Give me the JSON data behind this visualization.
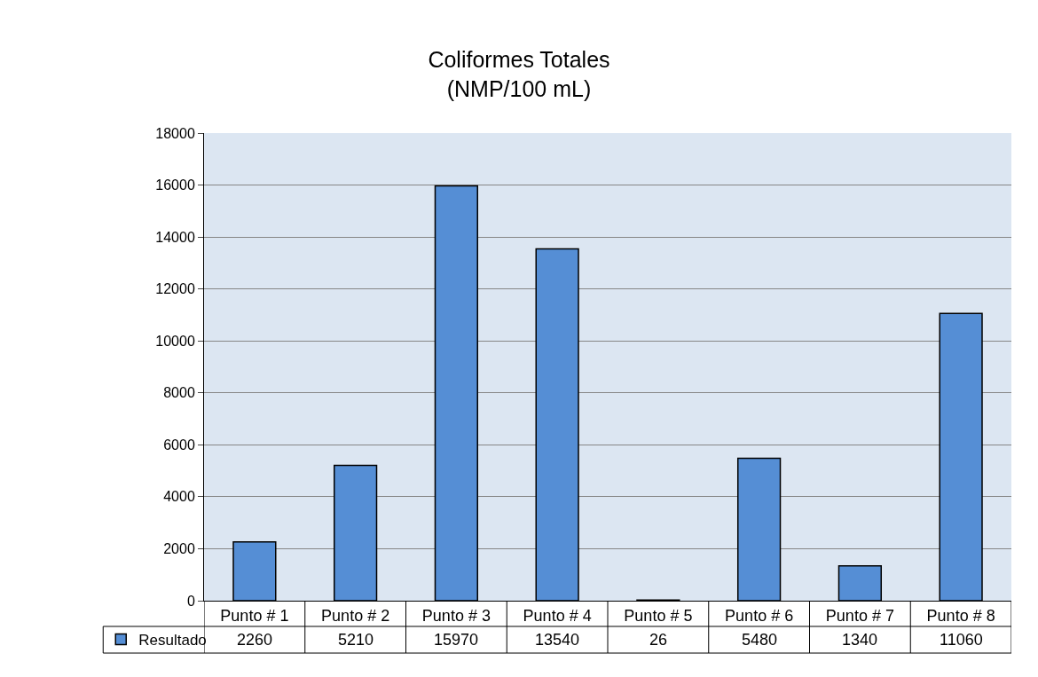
{
  "chart_data": {
    "type": "bar",
    "title": "Coliformes Totales\n(NMP/100 mL)",
    "categories": [
      "Punto # 1",
      "Punto # 2",
      "Punto # 3",
      "Punto # 4",
      "Punto # 5",
      "Punto # 6",
      "Punto # 7",
      "Punto # 8"
    ],
    "series": [
      {
        "name": "Resultado",
        "color": "#558ed5",
        "values": [
          2260,
          5210,
          15970,
          13540,
          26,
          5480,
          1340,
          11060
        ]
      }
    ],
    "ylim": [
      0,
      18000
    ],
    "yticks": [
      0,
      2000,
      4000,
      6000,
      8000,
      10000,
      12000,
      14000,
      16000,
      18000
    ],
    "grid": "y",
    "legend": "bottom left",
    "data_labels": true
  }
}
